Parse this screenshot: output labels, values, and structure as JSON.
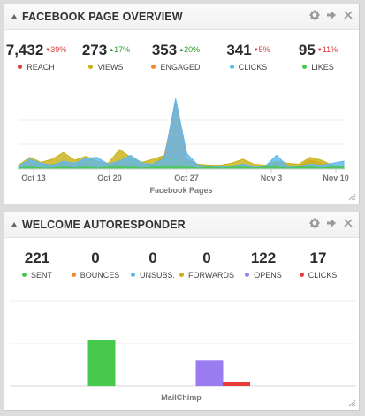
{
  "widget1": {
    "title": "FACEBOOK PAGE OVERVIEW",
    "stats": [
      {
        "value": "7,432",
        "change": "39%",
        "dir": "down",
        "label": "REACH",
        "color": "#e63b3b"
      },
      {
        "value": "273",
        "change": "17%",
        "dir": "up",
        "label": "VIEWS",
        "color": "#c9b21a"
      },
      {
        "value": "353",
        "change": "20%",
        "dir": "up",
        "label": "ENGAGED",
        "color": "#ef8a24"
      },
      {
        "value": "341",
        "change": "5%",
        "dir": "down",
        "label": "CLICKS",
        "color": "#5fb8ec"
      },
      {
        "value": "95",
        "change": "11%",
        "dir": "down",
        "label": "LIKES",
        "color": "#46c94c"
      }
    ]
  },
  "widget2": {
    "title": "WELCOME AUTORESPONDER",
    "stats": [
      {
        "value": "221",
        "label": "SENT",
        "color": "#46c94c"
      },
      {
        "value": "0",
        "label": "BOUNCES",
        "color": "#ef8a24"
      },
      {
        "value": "0",
        "label": "UNSUBS.",
        "color": "#5fb8ec"
      },
      {
        "value": "0",
        "label": "FORWARDS",
        "color": "#c9b21a"
      },
      {
        "value": "122",
        "label": "OPENS",
        "color": "#9b7cf0"
      },
      {
        "value": "17",
        "label": "CLICKS",
        "color": "#e63b3b"
      }
    ]
  },
  "chart_data": [
    {
      "type": "area",
      "title": "",
      "xlabel": "Facebook Pages",
      "ylabel": "",
      "tick_labels": [
        "Oct 13",
        "Oct 20",
        "Oct 27",
        "Nov 3",
        "Nov 10"
      ],
      "x": [
        0,
        1,
        2,
        3,
        4,
        5,
        6,
        7,
        8,
        9,
        10,
        11,
        12,
        13,
        14,
        15,
        16,
        17,
        18,
        19,
        20,
        21,
        22,
        23,
        24,
        25,
        26,
        27,
        28,
        29
      ],
      "ylim": [
        0,
        75
      ],
      "grid": true,
      "series": [
        {
          "color": "#ef8a24",
          "values": [
            2,
            6,
            3,
            5,
            6,
            3,
            7,
            4,
            3,
            9,
            6,
            4,
            5,
            14,
            68,
            10,
            5,
            4,
            3,
            3,
            5,
            3,
            3,
            6,
            4,
            3,
            9,
            6,
            3,
            3
          ]
        },
        {
          "color": "#c9b21a",
          "values": [
            4,
            12,
            7,
            10,
            17,
            9,
            13,
            8,
            6,
            20,
            12,
            7,
            10,
            14,
            10,
            7,
            5,
            4,
            4,
            6,
            10,
            5,
            4,
            8,
            6,
            5,
            12,
            9,
            4,
            3
          ]
        },
        {
          "color": "#5fb8ec",
          "values": [
            3,
            10,
            6,
            4,
            8,
            6,
            11,
            12,
            5,
            8,
            14,
            6,
            5,
            11,
            72,
            16,
            4,
            3,
            3,
            3,
            5,
            3,
            3,
            14,
            3,
            3,
            5,
            4,
            6,
            8
          ]
        },
        {
          "color": "#46c94c",
          "values": [
            1,
            2,
            1,
            1,
            2,
            1,
            2,
            1,
            2,
            2,
            2,
            1,
            2,
            2,
            2,
            2,
            1,
            2,
            1,
            2,
            2,
            1,
            2,
            2,
            1,
            2,
            2,
            1,
            2,
            2
          ]
        }
      ]
    },
    {
      "type": "bar",
      "title": "",
      "xlabel": "MailChimp",
      "ylabel": "",
      "categories": [
        "SENT",
        "BOUNCES",
        "UNSUBS.",
        "FORWARDS",
        "OPENS",
        "CLICKS"
      ],
      "values": [
        221,
        0,
        0,
        0,
        122,
        17
      ],
      "colors": [
        "#46c94c",
        "#ef8a24",
        "#5fb8ec",
        "#c9b21a",
        "#9b7cf0",
        "#e63b3b"
      ],
      "ylim": [
        0,
        430
      ],
      "grid": true
    }
  ]
}
